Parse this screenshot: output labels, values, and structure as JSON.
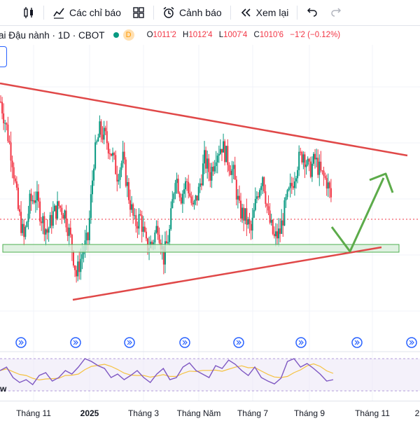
{
  "toolbar": {
    "indicators_label": "Các chỉ báo",
    "alerts_label": "Cảnh báo",
    "replay_label": "Xem lại"
  },
  "legend": {
    "symbol_title": "ai Đậu nành · 1D · CBOT",
    "timeframe_badge": "D",
    "open_key": "O",
    "open_val": "1011'2",
    "high_key": "H",
    "high_val": "1012'4",
    "low_key": "L",
    "low_val": "1007'4",
    "close_key": "C",
    "close_val": "1010'6",
    "change": "−1'2 (−0.12%)"
  },
  "rsi": {
    "label": "w"
  },
  "xaxis": {
    "labels": [
      "Tháng 11",
      "2025",
      "Tháng 3",
      "Tháng Năm",
      "Tháng 7",
      "Tháng 9",
      "Tháng 11",
      "2"
    ]
  },
  "colors": {
    "up": "#089981",
    "down": "#f23645",
    "trendline": "#e04848",
    "arrow": "#5cab4a",
    "zone_fill": "#d7eed9",
    "zone_border": "#4caf50",
    "rsi_line": "#7e57c2",
    "rsi_ma": "#f5c242"
  },
  "chart_data": {
    "type": "candlestick",
    "ohlc_last": {
      "open": 1011.25,
      "high": 1012.5,
      "low": 1007.5,
      "close": 1010.75,
      "change": -1.25,
      "change_pct": -0.12
    },
    "price_path": [
      1080,
      1062,
      1040,
      1005,
      985,
      1010,
      1015,
      1000,
      990,
      1002,
      1008,
      1003,
      985,
      960,
      975,
      985,
      1040,
      1060,
      1055,
      1045,
      1030,
      1040,
      1015,
      995,
      1000,
      980,
      982,
      995,
      972,
      990,
      1030,
      1015,
      1025,
      1005,
      1018,
      1040,
      1030,
      1045,
      1050,
      1040,
      1030,
      1005,
      1000,
      990,
      1015,
      1030,
      1000,
      985,
      990,
      1010,
      1022,
      1038,
      1045,
      1032,
      1040,
      1030,
      1025,
      1010
    ],
    "rsi_path": [
      55,
      60,
      45,
      38,
      42,
      35,
      48,
      52,
      40,
      45,
      55,
      50,
      60,
      72,
      68,
      62,
      58,
      45,
      50,
      42,
      48,
      55,
      45,
      38,
      50,
      58,
      42,
      45,
      60,
      66,
      55,
      50,
      45,
      62,
      58,
      70,
      64,
      55,
      48,
      60,
      45,
      40,
      36,
      44,
      68,
      72,
      60,
      65,
      58,
      50,
      40,
      42
    ]
  }
}
